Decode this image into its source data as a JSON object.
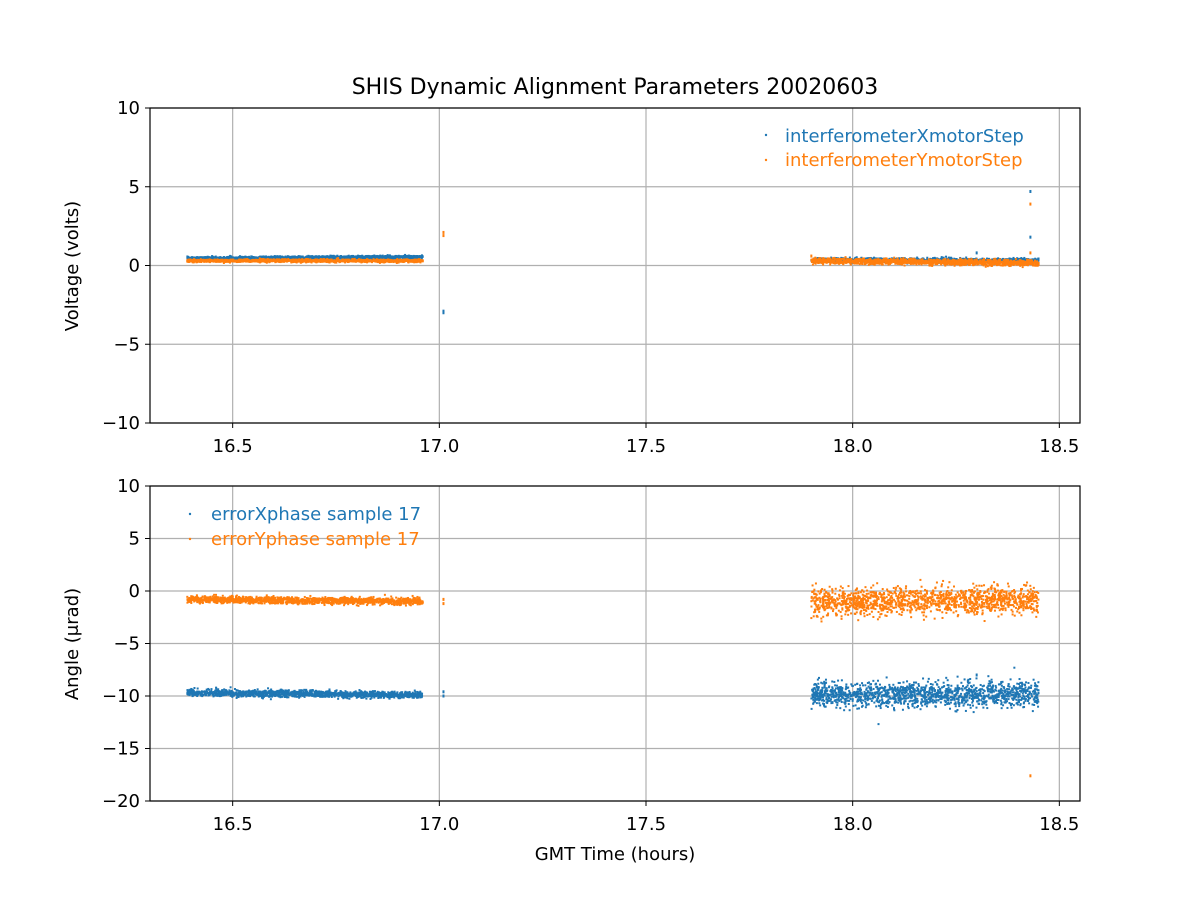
{
  "colors": {
    "blue": "#1f77b4",
    "orange": "#ff7f0e",
    "grid": "#b0b0b0",
    "axis": "#000000"
  },
  "chart_data": [
    {
      "type": "scatter",
      "title": "SHIS Dynamic Alignment Parameters 20020603",
      "xlabel": "",
      "ylabel": "Voltage (volts)",
      "xlim": [
        16.3,
        18.55
      ],
      "ylim": [
        -10,
        10
      ],
      "xticks": [
        16.5,
        17.0,
        17.5,
        18.0,
        18.5
      ],
      "xtick_labels": [
        "16.5",
        "17.0",
        "17.5",
        "18.0",
        "18.5"
      ],
      "yticks": [
        -10,
        -5,
        0,
        5,
        10
      ],
      "ytick_labels": [
        "−10",
        "−5",
        "0",
        "5",
        "10"
      ],
      "grid": true,
      "legend_position": "top-right",
      "series": [
        {
          "name": "interferometerXmotorStep",
          "color": "#1f77b4",
          "segments": [
            {
              "x_start": 16.39,
              "x_end": 16.96,
              "y_start": 0.45,
              "y_end": 0.55,
              "spread": 0.1
            },
            {
              "x_start": 17.9,
              "x_end": 18.45,
              "y_start": 0.35,
              "y_end": 0.3,
              "spread": 0.15
            }
          ],
          "points": [
            [
              17.01,
              -3.0
            ],
            [
              17.01,
              -2.9
            ],
            [
              18.43,
              4.7
            ],
            [
              18.43,
              1.8
            ],
            [
              18.3,
              0.8
            ]
          ]
        },
        {
          "name": "interferometerYmotorStep",
          "color": "#ff7f0e",
          "segments": [
            {
              "x_start": 16.39,
              "x_end": 16.96,
              "y_start": 0.3,
              "y_end": 0.3,
              "spread": 0.1
            },
            {
              "x_start": 17.9,
              "x_end": 18.45,
              "y_start": 0.3,
              "y_end": 0.15,
              "spread": 0.2
            }
          ],
          "points": [
            [
              17.01,
              2.1
            ],
            [
              17.01,
              1.9
            ],
            [
              18.43,
              3.9
            ],
            [
              18.43,
              0.8
            ],
            [
              17.9,
              0.6
            ]
          ]
        }
      ]
    },
    {
      "type": "scatter",
      "title": "",
      "xlabel": "GMT Time (hours)",
      "ylabel": "Angle (μrad)",
      "xlim": [
        16.3,
        18.55
      ],
      "ylim": [
        -20,
        10
      ],
      "xticks": [
        16.5,
        17.0,
        17.5,
        18.0,
        18.5
      ],
      "xtick_labels": [
        "16.5",
        "17.0",
        "17.5",
        "18.0",
        "18.5"
      ],
      "yticks": [
        -20,
        -15,
        -10,
        -5,
        0,
        5,
        10
      ],
      "ytick_labels": [
        "−20",
        "−15",
        "−10",
        "−5",
        "0",
        "5",
        "10"
      ],
      "grid": true,
      "legend_position": "top-left",
      "series": [
        {
          "name": "errorXphase sample 17",
          "color": "#1f77b4",
          "segments": [
            {
              "x_start": 16.39,
              "x_end": 16.96,
              "y_start": -9.7,
              "y_end": -9.9,
              "spread": 0.35
            },
            {
              "x_start": 17.9,
              "x_end": 18.45,
              "y_start": -9.9,
              "y_end": -9.8,
              "spread": 1.3
            }
          ],
          "points": [
            [
              17.01,
              -9.6
            ],
            [
              17.01,
              -10.0
            ],
            [
              18.3,
              -8.0
            ],
            [
              18.1,
              -11.2
            ]
          ]
        },
        {
          "name": "errorYphase sample 17",
          "color": "#ff7f0e",
          "segments": [
            {
              "x_start": 16.39,
              "x_end": 16.96,
              "y_start": -0.8,
              "y_end": -1.0,
              "spread": 0.35
            },
            {
              "x_start": 17.9,
              "x_end": 18.45,
              "y_start": -1.0,
              "y_end": -0.9,
              "spread": 1.4
            }
          ],
          "points": [
            [
              17.01,
              -0.8
            ],
            [
              17.01,
              -1.2
            ],
            [
              18.43,
              -17.6
            ],
            [
              18.35,
              0.6
            ]
          ]
        }
      ]
    }
  ]
}
